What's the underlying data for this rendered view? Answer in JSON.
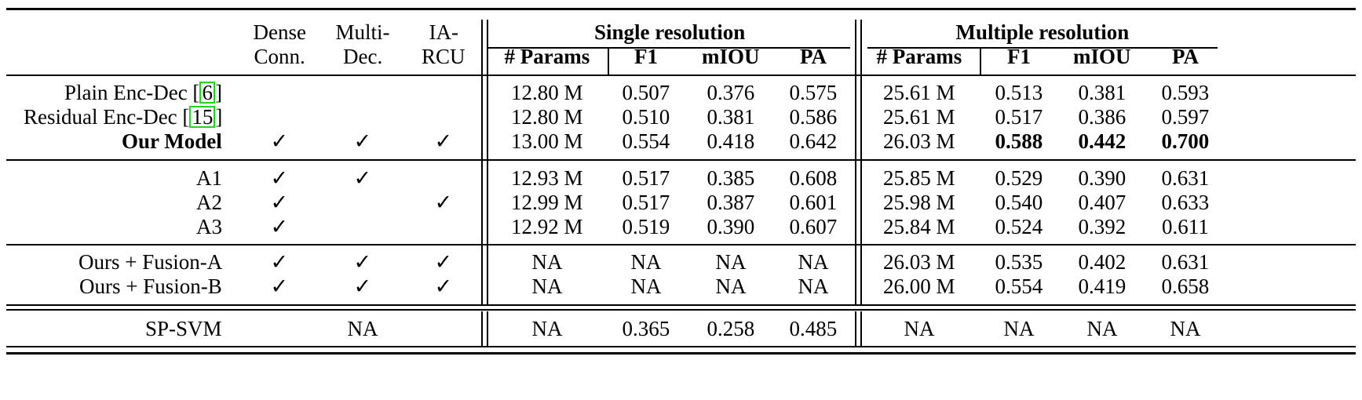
{
  "header": {
    "dense_1": "Dense",
    "dense_2": "Conn.",
    "multi_1": "Multi-",
    "multi_2": "Dec.",
    "ia_1": "IA-",
    "ia_2": "RCU",
    "group_single": "Single resolution",
    "group_multiple": "Multiple resolution",
    "params": "# Params",
    "f1": "F1",
    "miou": "mIOU",
    "pa": "PA"
  },
  "rows": [
    {
      "name": "Plain Enc-Dec [",
      "cite": "6",
      "name_end": "]",
      "dense": "",
      "multi": "",
      "ia": "",
      "s_params": "12.80 M",
      "s_f1": "0.507",
      "s_miou": "0.376",
      "s_pa": "0.575",
      "m_params": "25.61 M",
      "m_f1": "0.513",
      "m_miou": "0.381",
      "m_pa": "0.593"
    },
    {
      "name": "Residual Enc-Dec [",
      "cite": "15",
      "name_end": "]",
      "dense": "",
      "multi": "",
      "ia": "",
      "s_params": "12.80 M",
      "s_f1": "0.510",
      "s_miou": "0.381",
      "s_pa": "0.586",
      "m_params": "25.61 M",
      "m_f1": "0.517",
      "m_miou": "0.386",
      "m_pa": "0.597"
    },
    {
      "name": "Our Model",
      "cite": "",
      "name_end": "",
      "dense": "✓",
      "multi": "✓",
      "ia": "✓",
      "s_params": "13.00 M",
      "s_f1": "0.554",
      "s_miou": "0.418",
      "s_pa": "0.642",
      "m_params": "26.03 M",
      "m_f1": "0.588",
      "m_miou": "0.442",
      "m_pa": "0.700"
    },
    {
      "name": "A1",
      "cite": "",
      "name_end": "",
      "dense": "✓",
      "multi": "✓",
      "ia": "",
      "s_params": "12.93 M",
      "s_f1": "0.517",
      "s_miou": "0.385",
      "s_pa": "0.608",
      "m_params": "25.85 M",
      "m_f1": "0.529",
      "m_miou": "0.390",
      "m_pa": "0.631"
    },
    {
      "name": "A2",
      "cite": "",
      "name_end": "",
      "dense": "✓",
      "multi": "",
      "ia": "✓",
      "s_params": "12.99 M",
      "s_f1": "0.517",
      "s_miou": "0.387",
      "s_pa": "0.601",
      "m_params": "25.98 M",
      "m_f1": "0.540",
      "m_miou": "0.407",
      "m_pa": "0.633"
    },
    {
      "name": "A3",
      "cite": "",
      "name_end": "",
      "dense": "✓",
      "multi": "",
      "ia": "",
      "s_params": "12.92 M",
      "s_f1": "0.519",
      "s_miou": "0.390",
      "s_pa": "0.607",
      "m_params": "25.84 M",
      "m_f1": "0.524",
      "m_miou": "0.392",
      "m_pa": "0.611"
    },
    {
      "name": "Ours + Fusion-A",
      "cite": "",
      "name_end": "",
      "dense": "✓",
      "multi": "✓",
      "ia": "✓",
      "s_params": "NA",
      "s_f1": "NA",
      "s_miou": "NA",
      "s_pa": "NA",
      "m_params": "26.03 M",
      "m_f1": "0.535",
      "m_miou": "0.402",
      "m_pa": "0.631"
    },
    {
      "name": "Ours + Fusion-B",
      "cite": "",
      "name_end": "",
      "dense": "✓",
      "multi": "✓",
      "ia": "✓",
      "s_params": "NA",
      "s_f1": "NA",
      "s_miou": "NA",
      "s_pa": "NA",
      "m_params": "26.00 M",
      "m_f1": "0.554",
      "m_miou": "0.419",
      "m_pa": "0.658"
    },
    {
      "name": "SP-SVM",
      "cite": "",
      "name_end": "",
      "dense": "",
      "multi": "NA",
      "ia": "",
      "s_params": "NA",
      "s_f1": "0.365",
      "s_miou": "0.258",
      "s_pa": "0.485",
      "m_params": "NA",
      "m_f1": "NA",
      "m_miou": "NA",
      "m_pa": "NA"
    }
  ],
  "bold_cells": [
    "2.name",
    "2.m_f1",
    "2.m_miou",
    "2.m_pa"
  ]
}
